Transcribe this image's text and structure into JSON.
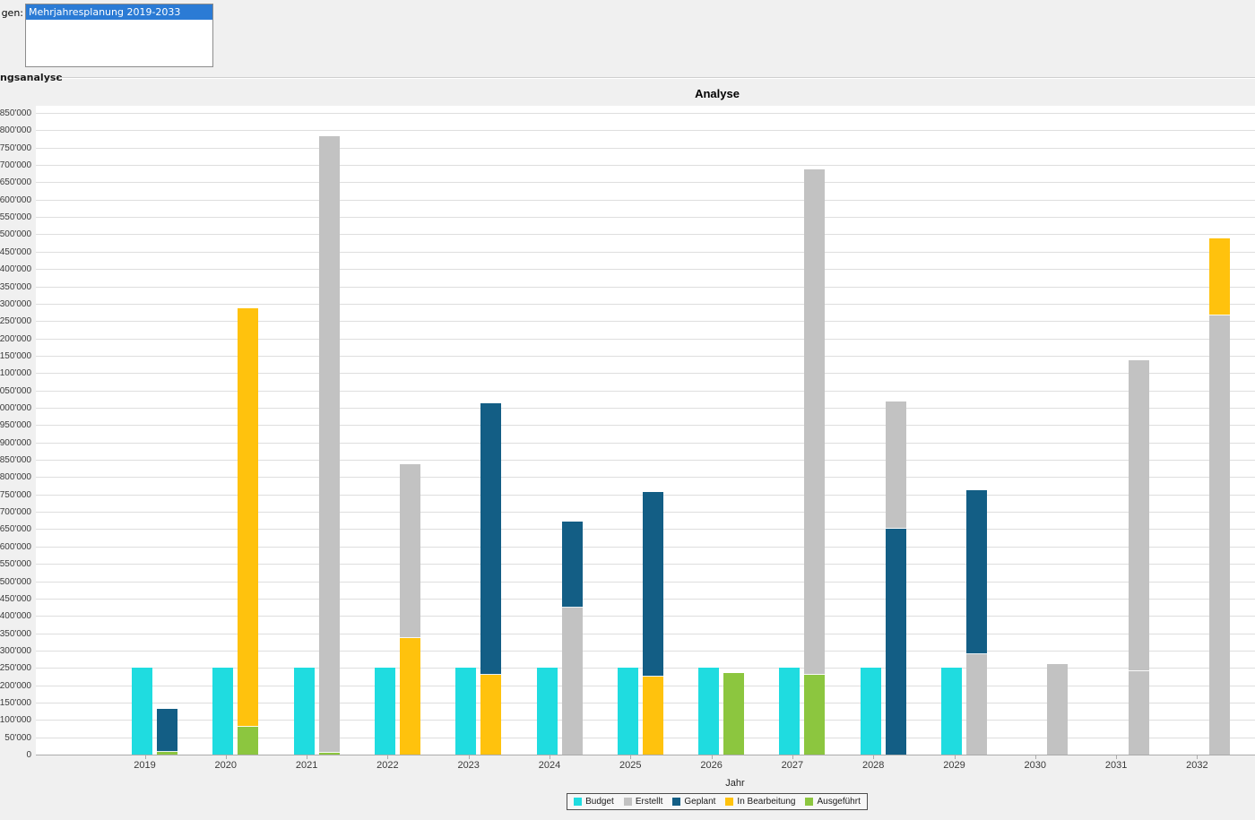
{
  "selector": {
    "label": "gen:",
    "items": [
      {
        "label": "Mehrjahresplanung 2019-2033",
        "selected": true
      }
    ]
  },
  "groupbox": {
    "label": "ngsanalyse"
  },
  "colors": {
    "selection_blue": "#2B7BD5",
    "panel_background": "#F0F0F0",
    "plot_background": "#FFFFFF",
    "gridline": "#DEDEDE",
    "axis_line": "#ABABAB",
    "text": "#3A3A3A"
  },
  "chart_data": {
    "type": "bar",
    "title": "Analyse",
    "xlabel": "Jahr",
    "ylabel": "",
    "ylim": [
      0,
      1850000
    ],
    "ytick_step": 50000,
    "grid": true,
    "legend_position": "bottom",
    "stack_order": "bottom-to-top",
    "series": [
      {
        "key": "budget",
        "label": "Budget",
        "color": "#1FDCE0"
      },
      {
        "key": "erstellt",
        "label": "Erstellt",
        "color": "#C2C2C2"
      },
      {
        "key": "geplant",
        "label": "Geplant",
        "color": "#135E85"
      },
      {
        "key": "in_bearbeitung",
        "label": "In Bearbeitung",
        "color": "#FFC20D"
      },
      {
        "key": "ausgefuehrt",
        "label": "Ausgeführt",
        "color": "#8CC63F"
      }
    ],
    "categories": [
      "2019",
      "2020",
      "2021",
      "2022",
      "2023",
      "2024",
      "2025",
      "2026",
      "2027",
      "2028",
      "2029",
      "2030",
      "2031",
      "2032"
    ],
    "budget_values": [
      250000,
      250000,
      250000,
      250000,
      250000,
      250000,
      250000,
      250000,
      250000,
      250000,
      250000,
      null,
      null,
      null
    ],
    "stacks": [
      [
        {
          "key": "ausgefuehrt",
          "value": 8000
        },
        {
          "key": "geplant",
          "value": 122000
        }
      ],
      [
        {
          "key": "ausgefuehrt",
          "value": 80000
        },
        {
          "key": "in_bearbeitung",
          "value": 1205000
        }
      ],
      [
        {
          "key": "ausgefuehrt",
          "value": 5000
        },
        {
          "key": "erstellt",
          "value": 1775000
        }
      ],
      [
        {
          "key": "in_bearbeitung",
          "value": 335000
        },
        {
          "key": "erstellt",
          "value": 500000
        }
      ],
      [
        {
          "key": "in_bearbeitung",
          "value": 230000
        },
        {
          "key": "geplant",
          "value": 780000
        }
      ],
      [
        {
          "key": "erstellt",
          "value": 425000
        },
        {
          "key": "geplant",
          "value": 245000
        }
      ],
      [
        {
          "key": "in_bearbeitung",
          "value": 225000
        },
        {
          "key": "geplant",
          "value": 530000
        }
      ],
      [
        {
          "key": "ausgefuehrt",
          "value": 235000
        }
      ],
      [
        {
          "key": "ausgefuehrt",
          "value": 230000
        },
        {
          "key": "erstellt",
          "value": 1455000
        }
      ],
      [
        {
          "key": "geplant",
          "value": 650000
        },
        {
          "key": "erstellt",
          "value": 365000
        }
      ],
      [
        {
          "key": "erstellt",
          "value": 290000
        },
        {
          "key": "geplant",
          "value": 470000
        }
      ],
      [
        {
          "key": "erstellt",
          "value": 260000
        }
      ],
      [
        {
          "key": "erstellt",
          "value": 240000
        },
        {
          "key": "erstellt",
          "value": 895000
        }
      ],
      [
        {
          "key": "erstellt",
          "value": 1265000
        },
        {
          "key": "in_bearbeitung",
          "value": 220000
        }
      ]
    ]
  }
}
